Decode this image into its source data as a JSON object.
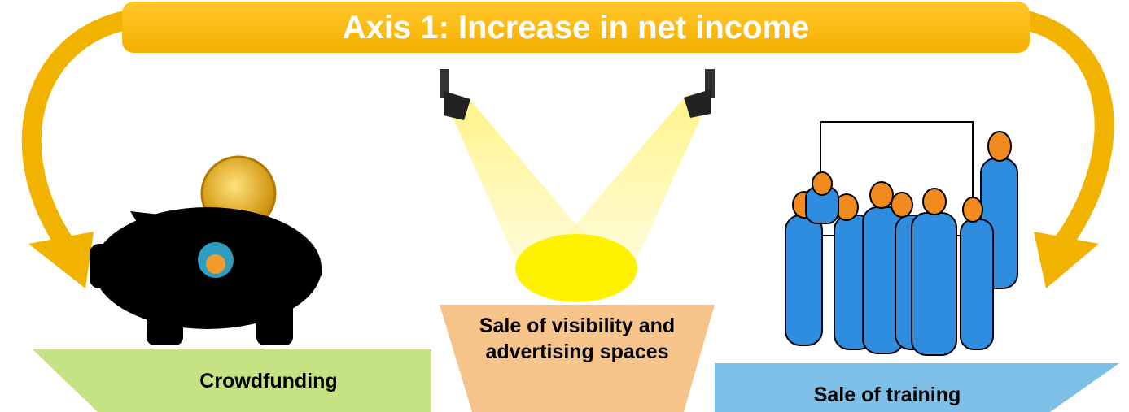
{
  "header": {
    "title": "Axis 1: Increase in net income"
  },
  "items": [
    {
      "label": "Crowdfunding"
    },
    {
      "label": "Sale of visibility and advertising spaces"
    },
    {
      "label": "Sale of training"
    }
  ]
}
